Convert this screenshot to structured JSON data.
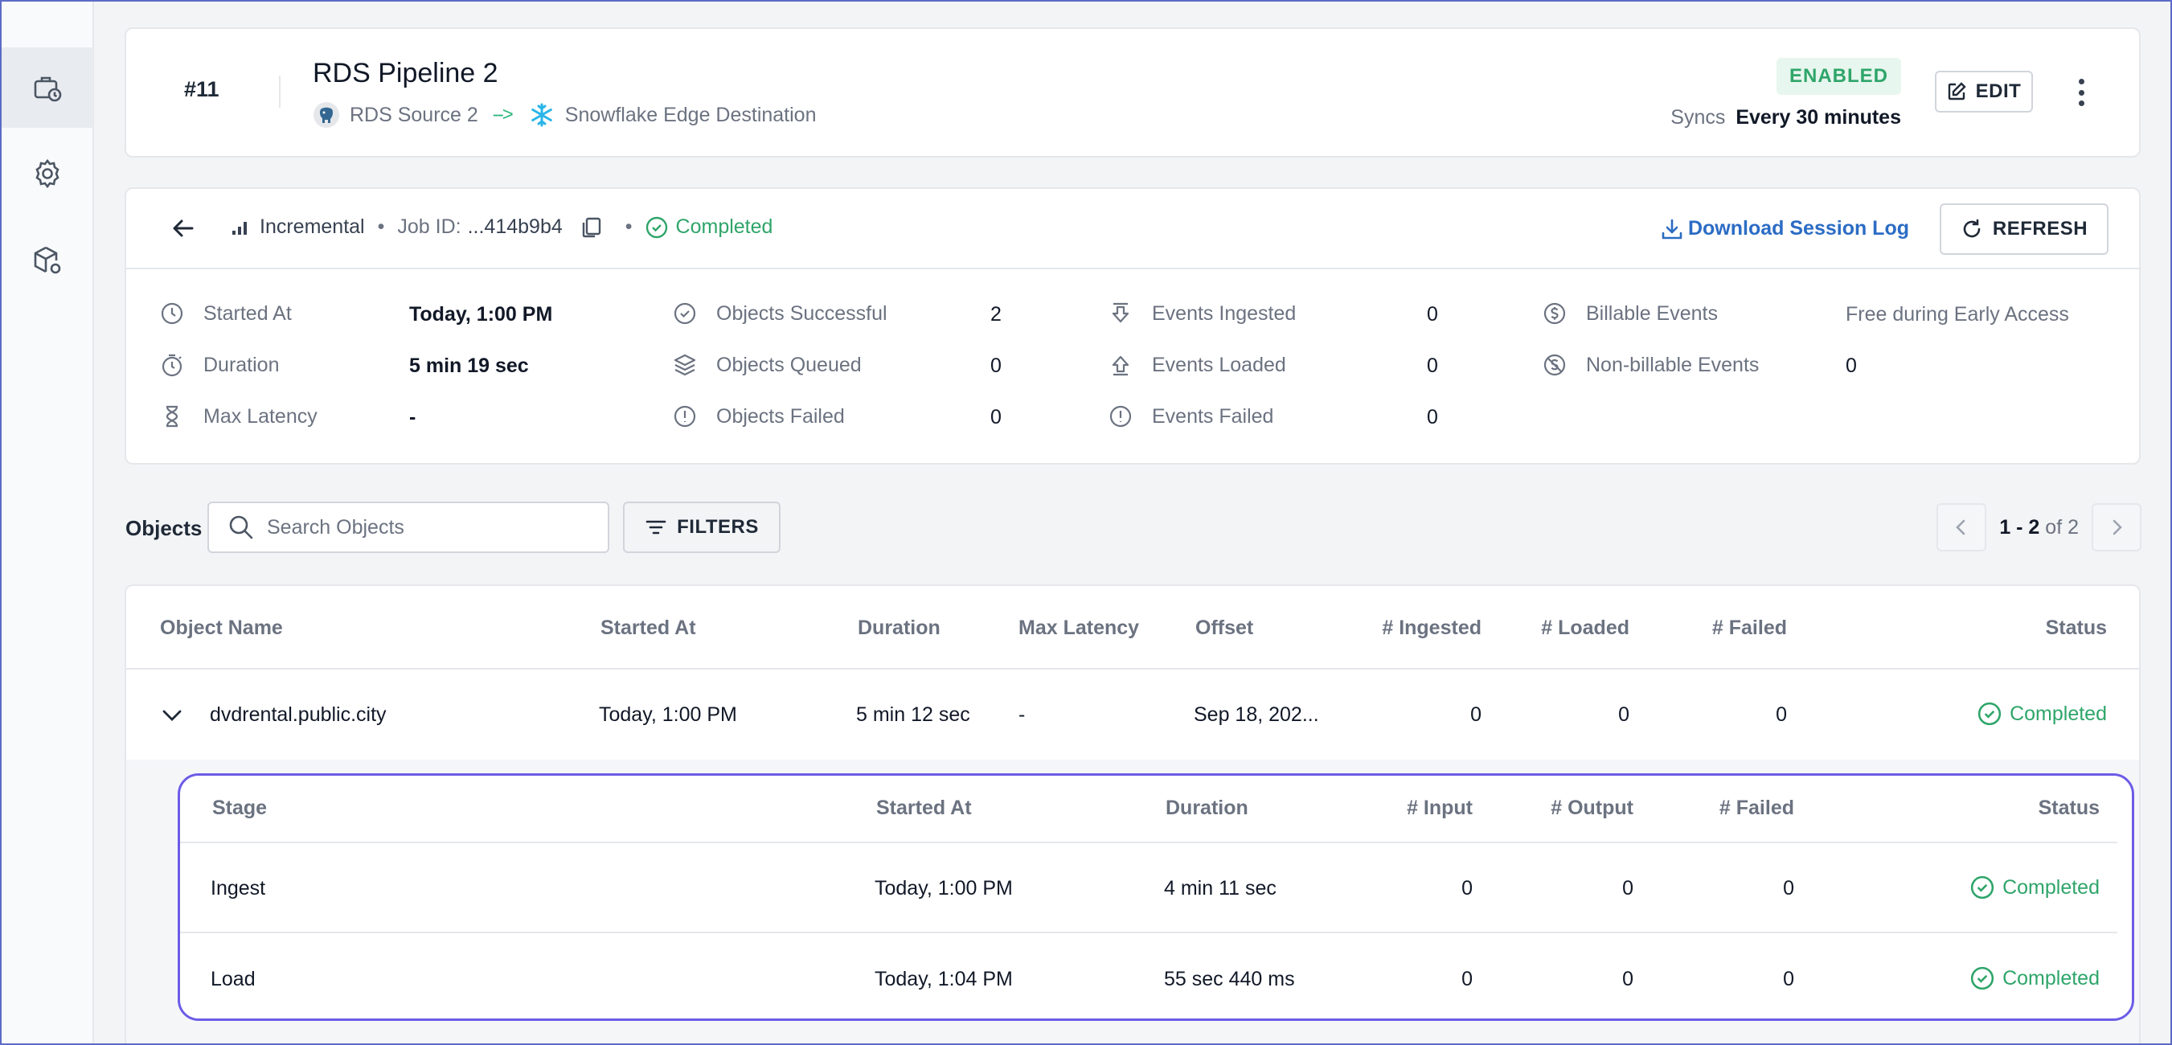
{
  "sidebar": {
    "items": [
      {
        "icon": "pipelines-icon",
        "active": true
      },
      {
        "icon": "settings-gear-icon",
        "active": false
      },
      {
        "icon": "models-cube-icon",
        "active": false
      }
    ]
  },
  "pipeline": {
    "number": "#11",
    "title": "RDS Pipeline 2",
    "source": "RDS Source 2",
    "arrow": "-->",
    "destination": "Snowflake Edge Destination",
    "status_badge": "ENABLED",
    "syncs_label": "Syncs",
    "syncs_value": "Every 30 minutes",
    "edit_label": "EDIT"
  },
  "job": {
    "type": "Incremental",
    "job_id_label": "Job ID:",
    "job_id_value": "...414b9b4",
    "status": "Completed",
    "download_label": "Download Session Log",
    "refresh_label": "REFRESH",
    "stats": {
      "started_at_label": "Started At",
      "started_at_value": "Today, 1:00 PM",
      "duration_label": "Duration",
      "duration_value": "5 min 19 sec",
      "max_latency_label": "Max Latency",
      "max_latency_value": "-",
      "objects_successful_label": "Objects Successful",
      "objects_successful_value": "2",
      "objects_queued_label": "Objects Queued",
      "objects_queued_value": "0",
      "objects_failed_label": "Objects Failed",
      "objects_failed_value": "0",
      "events_ingested_label": "Events Ingested",
      "events_ingested_value": "0",
      "events_loaded_label": "Events Loaded",
      "events_loaded_value": "0",
      "events_failed_label": "Events Failed",
      "events_failed_value": "0",
      "billable_label": "Billable Events",
      "billable_value": "Free during Early Access",
      "non_billable_label": "Non-billable Events",
      "non_billable_value": "0"
    }
  },
  "objects": {
    "label": "Objects",
    "search_placeholder": "Search Objects",
    "filters_label": "FILTERS",
    "pager_range": "1 - 2",
    "pager_of": "of 2",
    "columns": [
      "Object Name",
      "Started At",
      "Duration",
      "Max Latency",
      "Offset",
      "# Ingested",
      "# Loaded",
      "# Failed",
      "Status"
    ],
    "row": {
      "name": "dvdrental.public.city",
      "started_at": "Today, 1:00 PM",
      "duration": "5 min 12 sec",
      "max_latency": "-",
      "offset": "Sep 18, 202...",
      "ingested": "0",
      "loaded": "0",
      "failed": "0",
      "status": "Completed"
    },
    "stages": {
      "columns": [
        "Stage",
        "Started At",
        "Duration",
        "# Input",
        "# Output",
        "# Failed",
        "Status"
      ],
      "rows": [
        {
          "stage": "Ingest",
          "started_at": "Today, 1:00 PM",
          "duration": "4 min 11 sec",
          "input": "0",
          "output": "0",
          "failed": "0",
          "status": "Completed"
        },
        {
          "stage": "Load",
          "started_at": "Today, 1:04 PM",
          "duration": "55 sec 440 ms",
          "input": "0",
          "output": "0",
          "failed": "0",
          "status": "Completed"
        }
      ]
    }
  },
  "colors": {
    "accent_green": "#2fa56a",
    "link_blue": "#2b6cc4",
    "highlight_purple": "#6c5ce7"
  }
}
